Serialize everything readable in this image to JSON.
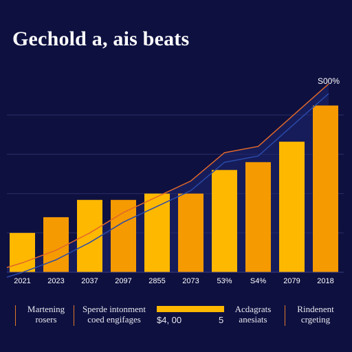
{
  "chart_data": {
    "type": "bar",
    "title": "Gechold a, ais beats",
    "categories": [
      "2021",
      "2023",
      "2037",
      "2097",
      "2855",
      "2073",
      "53%",
      "S4%",
      "2079",
      "2018"
    ],
    "values": [
      25,
      35,
      46,
      46,
      50,
      50,
      65,
      70,
      83,
      106
    ],
    "trend": [
      6,
      14,
      25,
      38,
      48,
      58,
      76,
      80,
      99,
      118
    ],
    "trend_label": "S00%",
    "ylim": [
      0,
      125
    ],
    "grid": true,
    "colors": {
      "bar": "#ffb800",
      "bar_dark": "#f59a00",
      "trend": "#e0682a",
      "trend_blue": "#2a4aa8",
      "grid": "#2b2e66",
      "background": "#0e1040"
    }
  },
  "legend": {
    "items": [
      {
        "line1": "Martening",
        "line2": "rosers"
      },
      {
        "line1": "Sperde intonment",
        "line2": "coed engifages"
      },
      {
        "line1": "Acdagrats",
        "line2": "anesiats"
      },
      {
        "line1": "Rindenent",
        "line2": "crgeting"
      }
    ],
    "price": "$4, 00",
    "price_suffix": "5"
  }
}
